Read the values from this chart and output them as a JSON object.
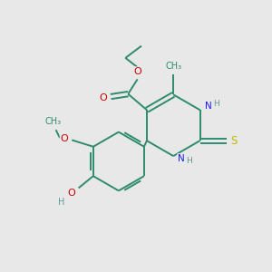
{
  "background_color": "#e8e8e8",
  "bond_color": "#2e8b6e",
  "N_color": "#1a1aff",
  "O_color": "#cc0000",
  "S_color": "#bbbb00",
  "H_color": "#5a9a9a",
  "line_width": 1.4,
  "figsize": [
    3.0,
    3.0
  ],
  "dpi": 100,
  "xlim": [
    0,
    10
  ],
  "ylim": [
    0,
    10
  ]
}
